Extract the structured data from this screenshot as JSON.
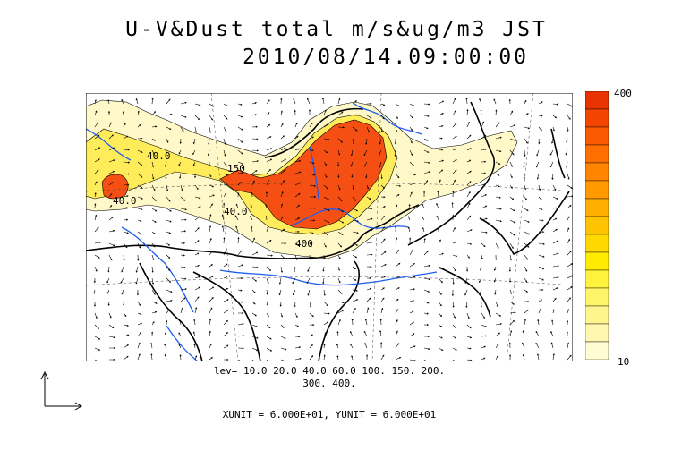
{
  "title": {
    "line1": "U-V&Dust total m/s&ug/m3 JST",
    "line2": "2010/08/14.09:00:00"
  },
  "colorbar": {
    "max_label": "400",
    "min_label": "10",
    "colors": [
      "#fffbd2",
      "#fff7b0",
      "#fff58f",
      "#fff468",
      "#fff23c",
      "#ffea00",
      "#ffd800",
      "#ffc400",
      "#ffaf00",
      "#ff9a00",
      "#ff8400",
      "#ff6e00",
      "#fb5a00",
      "#f24500",
      "#e63300"
    ]
  },
  "contour_labels": [
    "40.0",
    "40.0",
    "150",
    "40.0",
    "400"
  ],
  "levels": {
    "line1": "lev= 10.0 20.0 40.0 60.0 100. 150. 200.",
    "line2": "300. 400."
  },
  "units_text": "XUNIT = 6.000E+01, YUNIT = 6.000E+01",
  "colors": {
    "dust_low": "#fff8c8",
    "dust_mid": "#ffe84a",
    "dust_high": "#f54f14",
    "rivers": "#1f5cf2",
    "coast": "#000000"
  }
}
